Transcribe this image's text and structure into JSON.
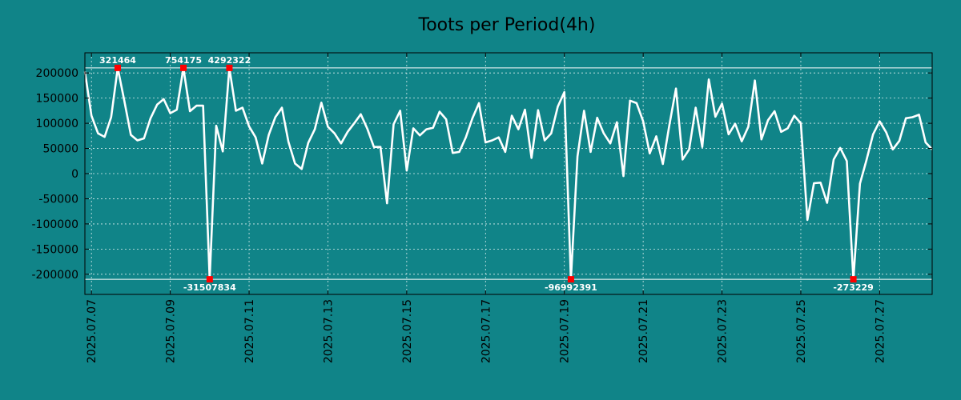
{
  "colors": {
    "background": "#108488",
    "line": "#ffffff",
    "marker": "#ff0000",
    "grid": "#d8ecec",
    "text": "#000000"
  },
  "chart_data": {
    "type": "line",
    "title": "Toots per Period(4h)",
    "xlabel": "",
    "ylabel": "",
    "grid": true,
    "legend": "none",
    "x_start": "2025.07.06 20:00",
    "x_step_hours": 4,
    "xlim": [
      "2025.07.06 20:00",
      "2025.07.28 08:00"
    ],
    "ylim": [
      -240000,
      240000
    ],
    "x_ticks": [
      "2025.07.07",
      "2025.07.09",
      "2025.07.11",
      "2025.07.13",
      "2025.07.15",
      "2025.07.17",
      "2025.07.19",
      "2025.07.21",
      "2025.07.23",
      "2025.07.25",
      "2025.07.27"
    ],
    "y_ticks": [
      200000,
      150000,
      100000,
      50000,
      0,
      -50000,
      -100000,
      -150000,
      -200000
    ],
    "y_tick_labels": [
      "200000",
      "150000",
      "100000",
      "50000",
      "0",
      "-50000",
      "-100000",
      "-150000",
      "-200000"
    ],
    "clip_lines": [
      210000,
      -210000
    ],
    "values": [
      203000,
      115000,
      80000,
      73000,
      112000,
      210000,
      145000,
      77000,
      66000,
      70000,
      110000,
      137000,
      148000,
      120000,
      127000,
      210000,
      124000,
      135000,
      135000,
      -210000,
      95000,
      44000,
      210000,
      125000,
      131000,
      94000,
      72000,
      20000,
      77000,
      112000,
      131000,
      63000,
      20000,
      9000,
      61000,
      88000,
      141000,
      93000,
      80000,
      60000,
      83000,
      100000,
      118000,
      89000,
      53000,
      53000,
      -59000,
      98000,
      125000,
      6000,
      90000,
      76000,
      88000,
      91000,
      123000,
      108000,
      41000,
      43000,
      72000,
      110000,
      140000,
      62000,
      66000,
      72000,
      43000,
      115000,
      88000,
      127000,
      31000,
      126000,
      66000,
      80000,
      133000,
      162000,
      -210000,
      34000,
      125000,
      43000,
      111000,
      80000,
      60000,
      102000,
      -5000,
      145000,
      140000,
      104000,
      40000,
      74000,
      19000,
      97000,
      169000,
      28000,
      48000,
      131000,
      53000,
      187000,
      113000,
      139000,
      78000,
      99000,
      64000,
      93000,
      185000,
      68000,
      106000,
      124000,
      83000,
      90000,
      115000,
      100000,
      -92000,
      -19000,
      -18000,
      -58000,
      28000,
      51000,
      25000,
      -210000,
      -20000,
      27000,
      78000,
      104000,
      82000,
      48000,
      65000,
      110000,
      112000,
      117000,
      62000,
      48000
    ],
    "annotations": [
      {
        "index": 5,
        "label": "321464",
        "position": "top"
      },
      {
        "index": 15,
        "label": "754175",
        "position": "top"
      },
      {
        "index": 22,
        "label": "4292322",
        "position": "top"
      },
      {
        "index": 19,
        "label": "-31507834",
        "position": "bottom"
      },
      {
        "index": 74,
        "label": "-96992391",
        "position": "bottom"
      },
      {
        "index": 117,
        "label": "-273229",
        "position": "bottom"
      }
    ]
  }
}
